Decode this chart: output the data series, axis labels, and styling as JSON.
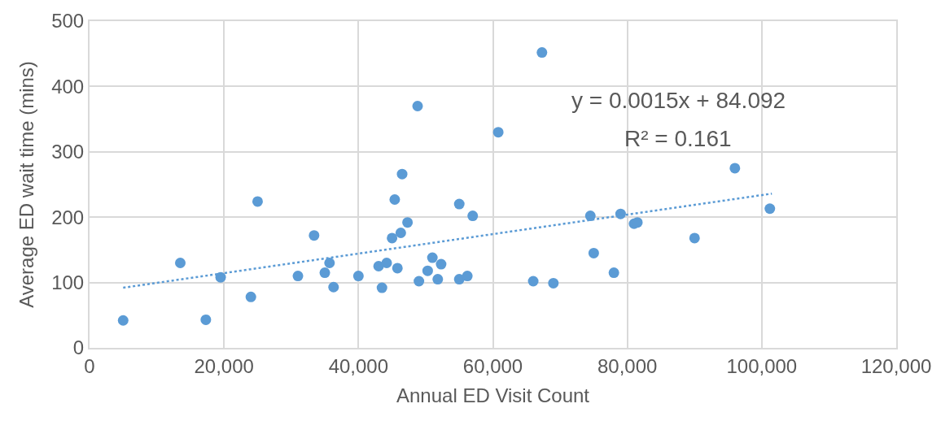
{
  "chart_data": {
    "type": "scatter",
    "xlabel": "Annual ED Visit Count",
    "ylabel": "Average ED wait time (mins)",
    "xlim": [
      0,
      120000
    ],
    "xticks": [
      {
        "value": 0,
        "label": "0"
      },
      {
        "value": 20000,
        "label": "20,000"
      },
      {
        "value": 40000,
        "label": "40,000"
      },
      {
        "value": 60000,
        "label": "60,000"
      },
      {
        "value": 80000,
        "label": "80,000"
      },
      {
        "value": 100000,
        "label": "100,000"
      },
      {
        "value": 120000,
        "label": "120,000"
      }
    ],
    "ylim": [
      0,
      500
    ],
    "yticks": [
      0,
      100,
      200,
      300,
      400,
      500
    ],
    "grid": true,
    "marker": "circle",
    "annotations": [
      "y = 0.0015x + 84.092",
      "R² = 0.161"
    ],
    "series": [
      {
        "color": "#5b9bd5",
        "x": [
          5000,
          13500,
          17300,
          19500,
          24000,
          25000,
          31000,
          33400,
          35000,
          35700,
          36300,
          40000,
          43000,
          43500,
          44200,
          45000,
          45400,
          45800,
          46300,
          46500,
          47300,
          49000,
          48800,
          50300,
          51000,
          51800,
          52300,
          55000,
          55000,
          56200,
          57000,
          60800,
          66000,
          67300,
          69000,
          74500,
          75000,
          78000,
          79000,
          81000,
          81500,
          90000,
          96000,
          101200
        ],
        "values": [
          42,
          130,
          43,
          108,
          78,
          224,
          110,
          172,
          115,
          130,
          93,
          110,
          125,
          92,
          130,
          168,
          227,
          122,
          176,
          266,
          192,
          102,
          370,
          118,
          138,
          105,
          128,
          105,
          220,
          110,
          202,
          330,
          102,
          452,
          99,
          202,
          145,
          115,
          205,
          190,
          192,
          168,
          275,
          213
        ]
      },
      {
        "type": "line",
        "color": "#5b9bd5",
        "line_style": "dotted",
        "marker": "none",
        "x": [
          5000,
          101500
        ],
        "values": [
          92,
          236
        ]
      }
    ]
  }
}
